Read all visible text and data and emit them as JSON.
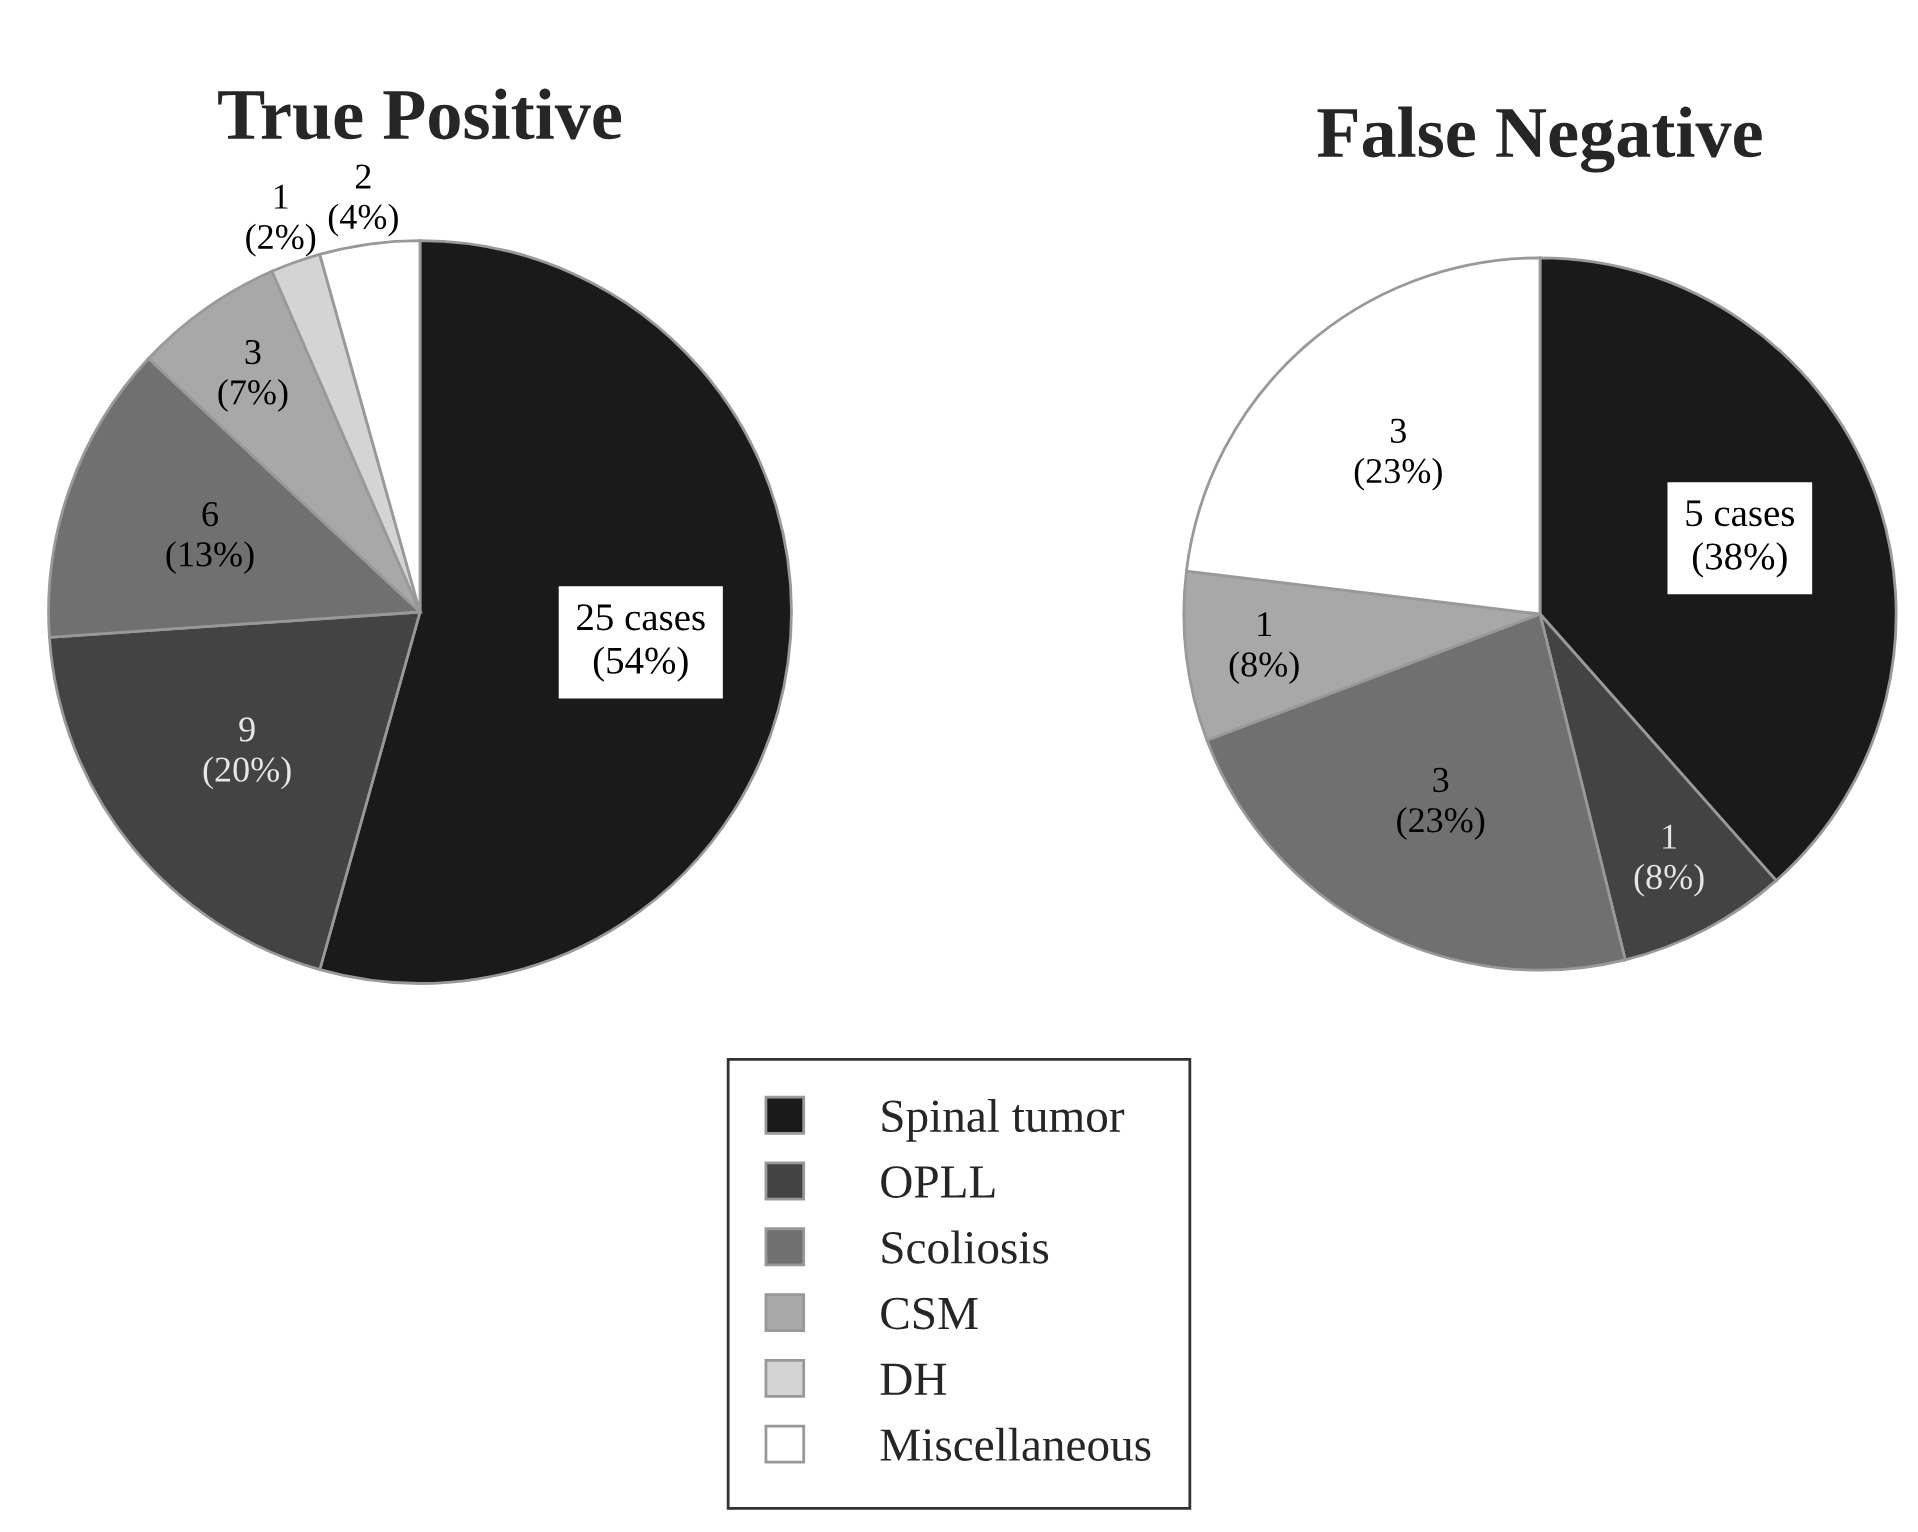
{
  "chart_data": [
    {
      "type": "pie",
      "title": "True Positive",
      "categories": [
        "Spinal tumor",
        "OPLL",
        "Scoliosis",
        "CSM",
        "DH",
        "Miscellaneous"
      ],
      "values": [
        25,
        9,
        6,
        3,
        1,
        2
      ],
      "value_labels": [
        "25 cases\n(54%)",
        "9\n(20%)",
        "6\n(13%)",
        "3\n(7%)",
        "1\n(2%)",
        "2\n(4%)"
      ],
      "colors": [
        "#1a1a1a",
        "#434343",
        "#707070",
        "#a8a8a8",
        "#d4d4d4",
        "#ffffff"
      ],
      "legend": "bottom"
    },
    {
      "type": "pie",
      "title": "False Negative",
      "categories": [
        null,
        null,
        null,
        null,
        null
      ],
      "values": [
        5,
        1,
        3,
        1,
        3
      ],
      "value_labels": [
        "5 cases\n(38%)",
        "1\n(8%)",
        "3\n(23%)",
        "1\n(8%)",
        "3\n(23%)"
      ],
      "colors": [
        "#1a1a1a",
        "#434343",
        "#707070",
        "#a8a8a8",
        "#ffffff"
      ]
    }
  ]
}
